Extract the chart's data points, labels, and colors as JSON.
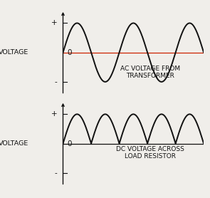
{
  "bg_color": "#f0eeea",
  "line_color": "#111111",
  "ac_line_color": "#cc2200",
  "label_color": "#111111",
  "voltage_label": "VOLTAGE",
  "zero_label": "0",
  "plus_label": "+",
  "minus_label": "-",
  "ac_caption": "AC VOLTAGE FROM\nTRANSFORMER",
  "dc_caption": "DC VOLTAGE ACROSS\nLOAD RESISTOR",
  "caption_fontsize": 6.5,
  "axis_label_fontsize": 6.8,
  "tick_label_fontsize": 7.5,
  "n_cycles": 2.5,
  "figsize": [
    2.95,
    2.78
  ],
  "dpi": 100
}
